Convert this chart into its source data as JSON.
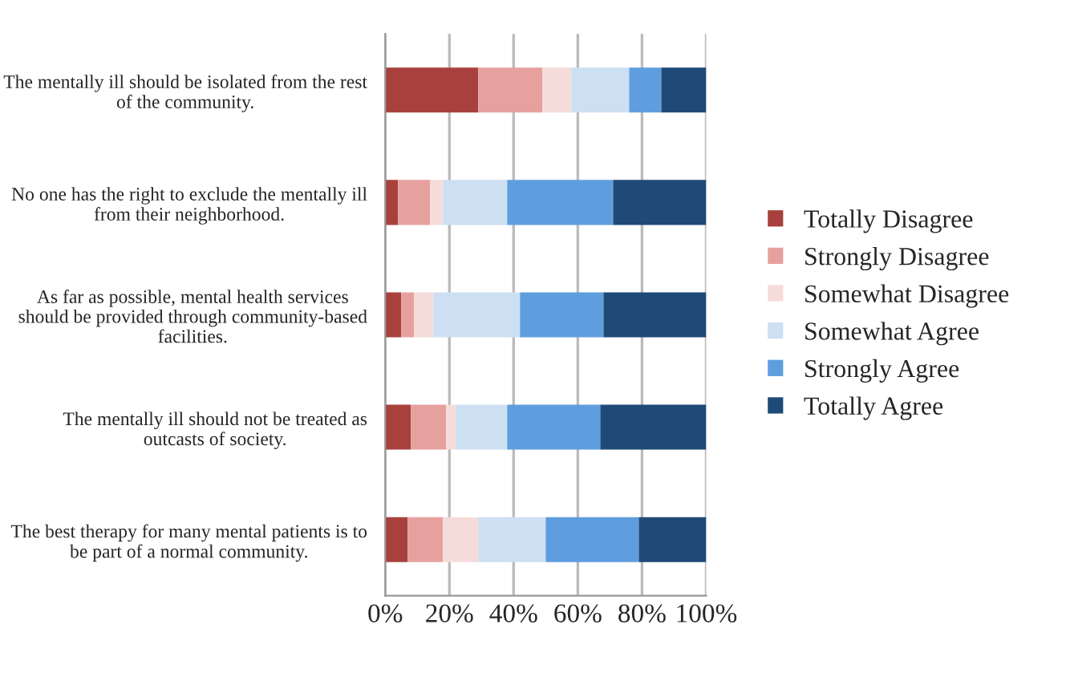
{
  "chart_data": {
    "type": "bar",
    "orientation": "horizontal",
    "stacked": true,
    "categories": [
      "The mentally ill should be isolated from the rest of the community.",
      "No one has the right to exclude the mentally ill from their neighborhood.",
      "As far as possible, mental health services should be provided through community-based facilities.",
      "The mentally ill should not be treated as outcasts of society.",
      "The best therapy for many mental patients is to be part of a normal community."
    ],
    "series": [
      {
        "name": "Totally Disagree",
        "color": "#a8413d",
        "values": [
          29,
          4,
          5,
          8,
          7
        ]
      },
      {
        "name": "Strongly Disagree",
        "color": "#e6a19f",
        "values": [
          20,
          10,
          4,
          11,
          11
        ]
      },
      {
        "name": "Somewhat Disagree",
        "color": "#f5dcdb",
        "values": [
          9,
          4,
          6,
          3,
          11
        ]
      },
      {
        "name": "Somewhat Agree",
        "color": "#cddff2",
        "values": [
          18,
          20,
          27,
          16,
          21
        ]
      },
      {
        "name": "Strongly Agree",
        "color": "#5f9ede",
        "values": [
          10,
          33,
          26,
          29,
          29
        ]
      },
      {
        "name": "Totally Agree",
        "color": "#1f4a78",
        "values": [
          14,
          29,
          32,
          33,
          21
        ]
      }
    ],
    "xlim": [
      0,
      100
    ],
    "xticks": [
      {
        "value": 0,
        "label": "0%"
      },
      {
        "value": 20,
        "label": "20%"
      },
      {
        "value": 40,
        "label": "40%"
      },
      {
        "value": 60,
        "label": "60%"
      },
      {
        "value": 80,
        "label": "80%"
      },
      {
        "value": 100,
        "label": "100%"
      }
    ],
    "grid": "x",
    "legend": "right"
  }
}
